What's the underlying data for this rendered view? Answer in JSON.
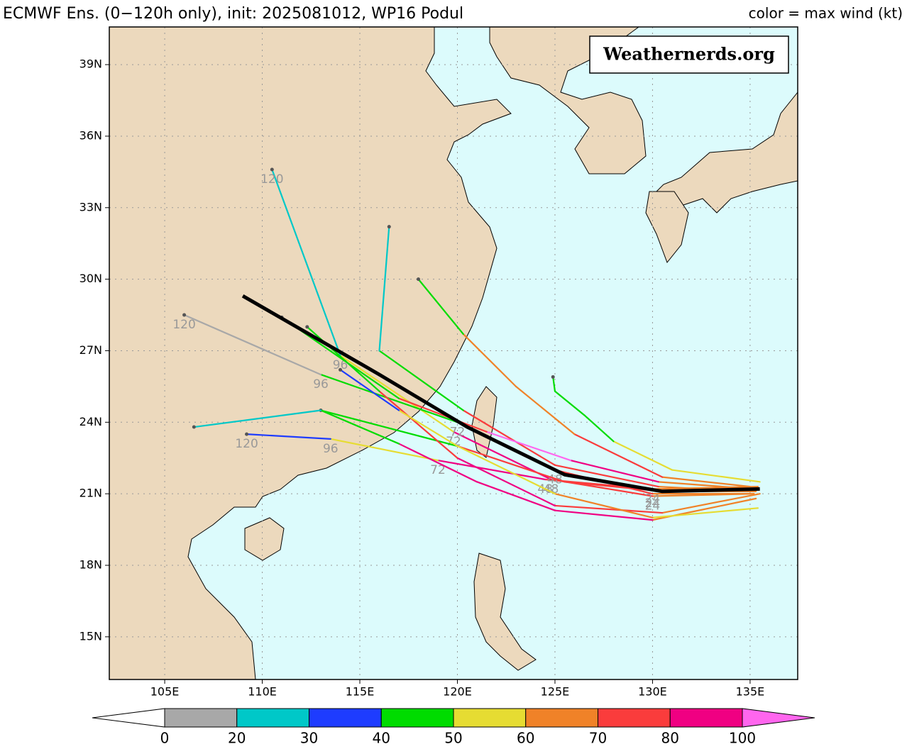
{
  "chart_data": {
    "type": "track-map",
    "title": "ECMWF Ens. (0−120h only), init: 2025081012, WP16 Podul",
    "legend_title": "color = max wind (kt)",
    "watermark": "Weathernerds.org",
    "xlim": [
      102.16,
      137.44
    ],
    "ylim": [
      13.21,
      40.58
    ],
    "xticks": [
      {
        "value": 105,
        "label": "105E"
      },
      {
        "value": 110,
        "label": "110E"
      },
      {
        "value": 115,
        "label": "115E"
      },
      {
        "value": 120,
        "label": "120E"
      },
      {
        "value": 125,
        "label": "125E"
      },
      {
        "value": 130,
        "label": "130E"
      },
      {
        "value": 135,
        "label": "135E"
      }
    ],
    "yticks": [
      {
        "value": 15,
        "label": "15N"
      },
      {
        "value": 18,
        "label": "18N"
      },
      {
        "value": 21,
        "label": "21N"
      },
      {
        "value": 24,
        "label": "24N"
      },
      {
        "value": 27,
        "label": "27N"
      },
      {
        "value": 30,
        "label": "30N"
      },
      {
        "value": 33,
        "label": "33N"
      },
      {
        "value": 36,
        "label": "36N"
      },
      {
        "value": 39,
        "label": "39N"
      }
    ],
    "grid": true,
    "forecast_hours": [
      0,
      24,
      48,
      72,
      96,
      120
    ],
    "colorbar": {
      "bounds": [
        0,
        20,
        30,
        40,
        50,
        60,
        70,
        80,
        100
      ],
      "colors": [
        "#a8a8a8",
        "#00c8c8",
        "#1e3cff",
        "#00dc00",
        "#e6dc32",
        "#f08228",
        "#fa3c3c",
        "#f00082"
      ],
      "under_color": "#ffffff",
      "over_color": "#ff66ee"
    },
    "members": [
      {
        "lon": [
          135.2,
          130,
          124.8,
          119.8,
          114,
          110.5
        ],
        "lat": [
          21.0,
          20.9,
          21.6,
          23.6,
          26.8,
          34.6
        ],
        "wind": [
          60,
          70,
          80,
          50,
          25,
          15
        ],
        "labeled": true
      },
      {
        "lon": [
          135,
          130.3,
          125,
          120.3,
          116,
          116.5
        ],
        "lat": [
          21.1,
          21.3,
          22.2,
          24.5,
          27,
          32.2
        ],
        "wind": [
          60,
          75,
          70,
          45,
          28,
          25
        ],
        "labeled": false
      },
      {
        "lon": [
          135.4,
          130,
          124.5,
          119,
          113.5,
          109.2
        ],
        "lat": [
          21.3,
          21.2,
          21.6,
          22.4,
          23.3,
          23.5
        ],
        "wind": [
          60,
          70,
          80,
          50,
          35,
          30
        ],
        "labeled": true
      },
      {
        "lon": [
          135.3,
          130,
          125,
          121,
          117,
          113
        ],
        "lat": [
          20.8,
          19.9,
          20.3,
          21.5,
          23.1,
          24.5
        ],
        "wind": [
          65,
          85,
          90,
          80,
          45,
          25
        ],
        "labeled": false
      },
      {
        "lon": [
          135.5,
          131,
          128,
          126.5,
          125,
          124.9
        ],
        "lat": [
          21.5,
          22,
          23.2,
          24.3,
          25.3,
          25.9
        ],
        "wind": [
          55,
          50,
          45,
          42,
          45,
          45
        ],
        "labeled": false
      },
      {
        "lon": [
          135,
          130.5,
          126,
          123,
          120.3,
          118
        ],
        "lat": [
          21.3,
          21.7,
          23.5,
          25.5,
          27.7,
          30
        ],
        "wind": [
          60,
          70,
          65,
          60,
          40,
          20
        ],
        "labeled": false
      },
      {
        "lon": [
          135,
          130,
          125,
          120,
          113,
          106
        ],
        "lat": [
          21,
          21,
          22,
          24,
          26,
          28.5
        ],
        "wind": [
          60,
          70,
          60,
          40,
          18,
          15
        ],
        "labeled": true
      },
      {
        "lon": [
          135.3,
          130.5,
          125.5,
          120,
          113,
          106.5
        ],
        "lat": [
          21.1,
          21.1,
          21.5,
          23,
          24.5,
          23.8
        ],
        "wind": [
          60,
          70,
          75,
          45,
          25,
          20
        ],
        "labeled": false
      },
      {
        "lon": [
          135.5,
          130.5,
          125,
          120,
          116,
          112.3
        ],
        "lat": [
          21,
          20.2,
          20.5,
          22.5,
          25.3,
          28
        ],
        "wind": [
          60,
          75,
          85,
          70,
          40,
          18
        ],
        "labeled": false
      },
      {
        "lon": [
          135.4,
          130,
          125,
          120,
          117,
          114
        ],
        "lat": [
          20.4,
          20,
          21,
          23,
          24.5,
          26.2
        ],
        "wind": [
          55,
          65,
          55,
          50,
          35,
          20
        ],
        "labeled": false
      },
      {
        "lon": [
          135.2,
          130.3,
          125.8,
          121.5,
          117,
          111
        ],
        "lat": [
          21.2,
          21.5,
          22.4,
          23.6,
          25,
          28.4
        ],
        "wind": [
          65,
          80,
          100,
          75,
          40,
          15
        ],
        "labeled": false
      }
    ],
    "mean_track": {
      "color": "#000000",
      "lon": [
        135.5,
        130.5,
        125.5,
        120.5,
        116,
        109
      ],
      "lat": [
        21.2,
        21.1,
        21.8,
        23.8,
        26,
        29.3
      ]
    }
  }
}
